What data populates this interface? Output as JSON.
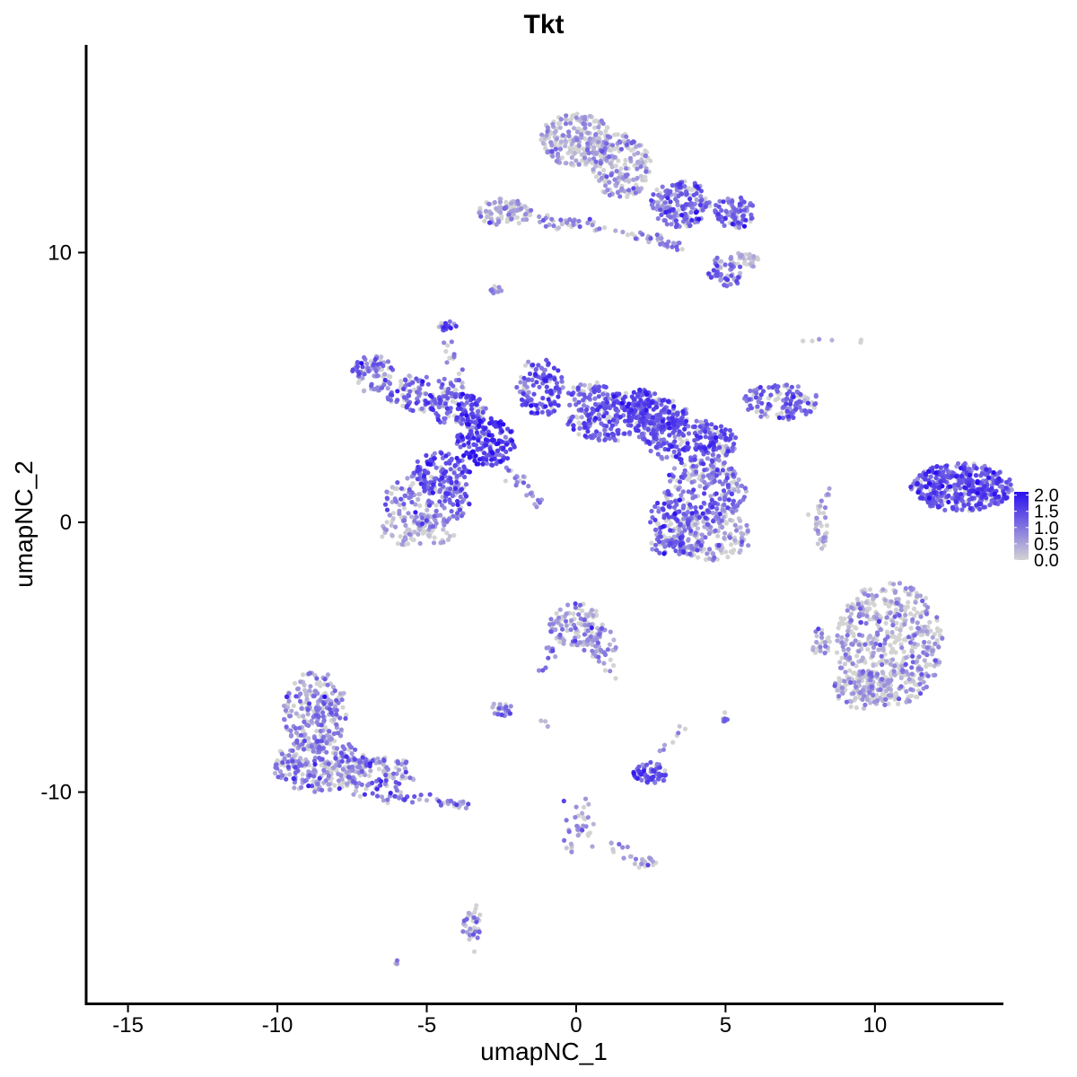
{
  "chart_data": {
    "type": "scatter",
    "title": "Tkt",
    "xlabel": "umapNC_1",
    "ylabel": "umapNC_2",
    "xlim": [
      -16.4,
      14.3
    ],
    "ylim": [
      -17.9,
      17.7
    ],
    "x_ticks": [
      -15,
      -10,
      -5,
      0,
      5,
      10
    ],
    "y_ticks": [
      -10,
      0,
      10
    ],
    "x_tick_labels": [
      "-15",
      "-10",
      "-5",
      "0",
      "5",
      "10"
    ],
    "y_tick_labels": [
      "-10",
      "0",
      "10"
    ],
    "color_scale": {
      "low_color": "#d3d3d3",
      "high_color": "#2a0ff0",
      "min": 0.0,
      "max": 2.1,
      "ticks": [
        0.0,
        0.5,
        1.0,
        1.5,
        2.0
      ],
      "tick_labels": [
        "0.0",
        "0.5",
        "1.0",
        "1.5",
        "2.0"
      ],
      "legend_position": "right"
    },
    "clusters": [
      {
        "cx": 12.9,
        "cy": 1.3,
        "rx": 1.7,
        "ry": 0.9,
        "count": 450,
        "mean_expr": 1.3,
        "spread_expr": 0.35
      },
      {
        "cx": 6.9,
        "cy": 4.5,
        "rx": 1.3,
        "ry": 0.7,
        "count": 120,
        "mean_expr": 1.15,
        "spread_expr": 0.3
      },
      {
        "cx": 3.8,
        "cy": 3.0,
        "rx": 1.6,
        "ry": 0.8,
        "count": 200,
        "mean_expr": 1.3,
        "spread_expr": 0.35
      },
      {
        "cx": 4.3,
        "cy": 1.2,
        "rx": 1.4,
        "ry": 1.2,
        "count": 220,
        "mean_expr": 1.05,
        "spread_expr": 0.4
      },
      {
        "cx": 4.5,
        "cy": -0.5,
        "rx": 1.4,
        "ry": 0.9,
        "count": 160,
        "mean_expr": 0.5,
        "spread_expr": 0.4
      },
      {
        "cx": 2.8,
        "cy": 4.0,
        "rx": 1.0,
        "ry": 0.6,
        "count": 120,
        "mean_expr": 1.25,
        "spread_expr": 0.3
      },
      {
        "cx": 1.2,
        "cy": 3.7,
        "rx": 1.5,
        "ry": 0.7,
        "count": 160,
        "mean_expr": 1.3,
        "spread_expr": 0.3
      },
      {
        "cx": -1.2,
        "cy": 5.0,
        "rx": 0.8,
        "ry": 1.1,
        "count": 120,
        "mean_expr": 1.3,
        "spread_expr": 0.35
      },
      {
        "cx": 0.5,
        "cy": 4.6,
        "rx": 0.8,
        "ry": 0.6,
        "count": 80,
        "mean_expr": 1.2,
        "spread_expr": 0.3
      },
      {
        "cx": 2.0,
        "cy": 4.5,
        "rx": 0.8,
        "ry": 0.5,
        "count": 80,
        "mean_expr": 1.4,
        "spread_expr": 0.3
      },
      {
        "cx": 3.0,
        "cy": 3.8,
        "rx": 0.5,
        "ry": 0.4,
        "count": 40,
        "mean_expr": 1.4,
        "spread_expr": 0.3
      },
      {
        "cx": -3.0,
        "cy": 3.0,
        "rx": 1.0,
        "ry": 0.9,
        "count": 180,
        "mean_expr": 1.55,
        "spread_expr": 0.35
      },
      {
        "cx": -4.0,
        "cy": 4.2,
        "rx": 1.0,
        "ry": 0.6,
        "count": 100,
        "mean_expr": 1.35,
        "spread_expr": 0.35
      },
      {
        "cx": -5.2,
        "cy": 4.8,
        "rx": 1.2,
        "ry": 0.7,
        "count": 100,
        "mean_expr": 1.1,
        "spread_expr": 0.35
      },
      {
        "cx": -6.8,
        "cy": 5.5,
        "rx": 0.7,
        "ry": 0.7,
        "count": 80,
        "mean_expr": 0.9,
        "spread_expr": 0.4
      },
      {
        "cx": -4.5,
        "cy": 1.8,
        "rx": 1.0,
        "ry": 0.8,
        "count": 120,
        "mean_expr": 1.3,
        "spread_expr": 0.35
      },
      {
        "cx": -5.0,
        "cy": 0.8,
        "rx": 1.5,
        "ry": 1.0,
        "count": 150,
        "mean_expr": 0.9,
        "spread_expr": 0.4
      },
      {
        "cx": -5.3,
        "cy": -0.3,
        "rx": 1.3,
        "ry": 0.6,
        "count": 90,
        "mean_expr": 0.4,
        "spread_expr": 0.35
      },
      {
        "cx": -4.3,
        "cy": 7.3,
        "rx": 0.3,
        "ry": 0.2,
        "count": 15,
        "mean_expr": 1.2,
        "spread_expr": 0.3
      },
      {
        "cx": 3.2,
        "cy": 0.0,
        "rx": 0.8,
        "ry": 0.9,
        "count": 80,
        "mean_expr": 1.2,
        "spread_expr": 0.4
      },
      {
        "cx": 3.4,
        "cy": -0.9,
        "rx": 1.0,
        "ry": 0.3,
        "count": 50,
        "mean_expr": 1.0,
        "spread_expr": 0.4
      },
      {
        "cx": 8.2,
        "cy": -0.2,
        "rx": 0.2,
        "ry": 0.8,
        "count": 25,
        "mean_expr": 0.4,
        "spread_expr": 0.3
      },
      {
        "cx": 0.0,
        "cy": 14.2,
        "rx": 1.2,
        "ry": 1.0,
        "count": 220,
        "mean_expr": 0.4,
        "spread_expr": 0.4
      },
      {
        "cx": 1.5,
        "cy": 13.2,
        "rx": 1.0,
        "ry": 1.2,
        "count": 180,
        "mean_expr": 0.55,
        "spread_expr": 0.45
      },
      {
        "cx": 3.5,
        "cy": 11.8,
        "rx": 1.0,
        "ry": 0.9,
        "count": 180,
        "mean_expr": 1.05,
        "spread_expr": 0.4
      },
      {
        "cx": 5.3,
        "cy": 11.5,
        "rx": 0.7,
        "ry": 0.6,
        "count": 80,
        "mean_expr": 1.1,
        "spread_expr": 0.35
      },
      {
        "cx": -2.4,
        "cy": 11.5,
        "rx": 0.9,
        "ry": 0.5,
        "count": 90,
        "mean_expr": 0.5,
        "spread_expr": 0.4
      },
      {
        "cx": 5.0,
        "cy": 9.3,
        "rx": 0.6,
        "ry": 0.6,
        "count": 60,
        "mean_expr": 0.9,
        "spread_expr": 0.45
      },
      {
        "cx": 5.6,
        "cy": 9.7,
        "rx": 0.5,
        "ry": 0.3,
        "count": 30,
        "mean_expr": 0.2,
        "spread_expr": 0.3
      },
      {
        "cx": -2.7,
        "cy": 8.6,
        "rx": 0.2,
        "ry": 0.15,
        "count": 10,
        "mean_expr": 0.9,
        "spread_expr": 0.3
      },
      {
        "cx": 10.5,
        "cy": -4.5,
        "rx": 1.8,
        "ry": 2.3,
        "count": 520,
        "mean_expr": 0.45,
        "spread_expr": 0.45
      },
      {
        "cx": 9.6,
        "cy": -6.2,
        "rx": 1.0,
        "ry": 0.7,
        "count": 120,
        "mean_expr": 0.4,
        "spread_expr": 0.45
      },
      {
        "cx": 8.2,
        "cy": -4.5,
        "rx": 0.3,
        "ry": 0.6,
        "count": 25,
        "mean_expr": 0.6,
        "spread_expr": 0.4
      },
      {
        "cx": -8.7,
        "cy": -7.0,
        "rx": 1.1,
        "ry": 1.5,
        "count": 230,
        "mean_expr": 0.7,
        "spread_expr": 0.45
      },
      {
        "cx": -8.6,
        "cy": -9.0,
        "rx": 1.6,
        "ry": 1.0,
        "count": 260,
        "mean_expr": 0.75,
        "spread_expr": 0.45
      },
      {
        "cx": -6.5,
        "cy": -9.3,
        "rx": 1.2,
        "ry": 0.6,
        "count": 100,
        "mean_expr": 0.75,
        "spread_expr": 0.45
      },
      {
        "cx": 0.0,
        "cy": -3.8,
        "rx": 0.9,
        "ry": 0.8,
        "count": 110,
        "mean_expr": 0.65,
        "spread_expr": 0.45
      },
      {
        "cx": 0.8,
        "cy": -4.5,
        "rx": 0.6,
        "ry": 0.7,
        "count": 40,
        "mean_expr": 0.5,
        "spread_expr": 0.4
      },
      {
        "cx": 2.5,
        "cy": -9.3,
        "rx": 0.6,
        "ry": 0.4,
        "count": 60,
        "mean_expr": 1.35,
        "spread_expr": 0.35
      },
      {
        "cx": -2.5,
        "cy": -6.9,
        "rx": 0.4,
        "ry": 0.3,
        "count": 25,
        "mean_expr": 0.8,
        "spread_expr": 0.4
      },
      {
        "cx": 5.0,
        "cy": -7.2,
        "rx": 0.15,
        "ry": 0.2,
        "count": 8,
        "mean_expr": 1.0,
        "spread_expr": 0.3
      },
      {
        "cx": 0.2,
        "cy": -11.0,
        "rx": 0.4,
        "ry": 0.8,
        "count": 25,
        "mean_expr": 0.6,
        "spread_expr": 0.4
      },
      {
        "cx": 2.2,
        "cy": -12.6,
        "rx": 0.5,
        "ry": 0.2,
        "count": 15,
        "mean_expr": 0.5,
        "spread_expr": 0.4
      },
      {
        "cx": -3.5,
        "cy": -15.0,
        "rx": 0.3,
        "ry": 0.6,
        "count": 25,
        "mean_expr": 0.6,
        "spread_expr": 0.45
      },
      {
        "cx": -3.8,
        "cy": -10.5,
        "rx": 0.3,
        "ry": 0.15,
        "count": 10,
        "mean_expr": 0.7,
        "spread_expr": 0.4
      },
      {
        "cx": -6.0,
        "cy": -16.3,
        "rx": 0.1,
        "ry": 0.1,
        "count": 4,
        "mean_expr": 0.8,
        "spread_expr": 0.3
      }
    ],
    "trails": [
      {
        "x0": -3.0,
        "y0": 2.8,
        "x1": -1.2,
        "y1": 0.7,
        "count": 30,
        "mean_expr": 0.9,
        "spread_expr": 0.3
      },
      {
        "x0": -3.5,
        "y0": 3.8,
        "x1": -4.5,
        "y1": 7.3,
        "count": 25,
        "mean_expr": 1.0,
        "spread_expr": 0.35
      },
      {
        "x0": -1.3,
        "y0": 11.2,
        "x1": 1.0,
        "y1": 11.0,
        "count": 35,
        "mean_expr": 0.7,
        "spread_expr": 0.4
      },
      {
        "x0": 1.5,
        "y0": 10.8,
        "x1": 3.5,
        "y1": 10.2,
        "count": 35,
        "mean_expr": 0.8,
        "spread_expr": 0.4
      },
      {
        "x0": 6.9,
        "y0": 6.9,
        "x1": 9.9,
        "y1": 6.8,
        "count": 6,
        "mean_expr": 0.4,
        "spread_expr": 0.4
      },
      {
        "x0": 7.6,
        "y0": 4.8,
        "x1": 7.8,
        "y1": 4.4,
        "count": 3,
        "mean_expr": 0.2,
        "spread_expr": 0.2
      },
      {
        "x0": -7.5,
        "y0": -10.0,
        "x1": -3.8,
        "y1": -10.4,
        "count": 40,
        "mean_expr": 0.8,
        "spread_expr": 0.45
      },
      {
        "x0": -1.5,
        "y0": -6.0,
        "x1": -0.5,
        "y1": -4.2,
        "count": 12,
        "mean_expr": 0.9,
        "spread_expr": 0.3
      },
      {
        "x0": 0.9,
        "y0": -4.8,
        "x1": 1.2,
        "y1": -5.7,
        "count": 10,
        "mean_expr": 0.4,
        "spread_expr": 0.4
      },
      {
        "x0": -0.4,
        "y0": -10.2,
        "x1": -0.1,
        "y1": -12.2,
        "count": 10,
        "mean_expr": 0.8,
        "spread_expr": 0.4
      },
      {
        "x0": 0.5,
        "y0": -11.8,
        "x1": 2.3,
        "y1": -12.4,
        "count": 12,
        "mean_expr": 0.5,
        "spread_expr": 0.4
      },
      {
        "x0": 2.8,
        "y0": -8.6,
        "x1": 3.6,
        "y1": -7.6,
        "count": 8,
        "mean_expr": 0.6,
        "spread_expr": 0.4
      },
      {
        "x0": -3.5,
        "y0": -13.8,
        "x1": -3.2,
        "y1": -15.8,
        "count": 12,
        "mean_expr": 0.5,
        "spread_expr": 0.45
      },
      {
        "x0": 8.0,
        "y0": 0.2,
        "x1": 8.5,
        "y1": 1.2,
        "count": 10,
        "mean_expr": 0.6,
        "spread_expr": 0.3
      },
      {
        "x0": -1.1,
        "y0": -7.2,
        "x1": -0.9,
        "y1": -7.6,
        "count": 3,
        "mean_expr": 0.3,
        "spread_expr": 0.2
      }
    ]
  }
}
